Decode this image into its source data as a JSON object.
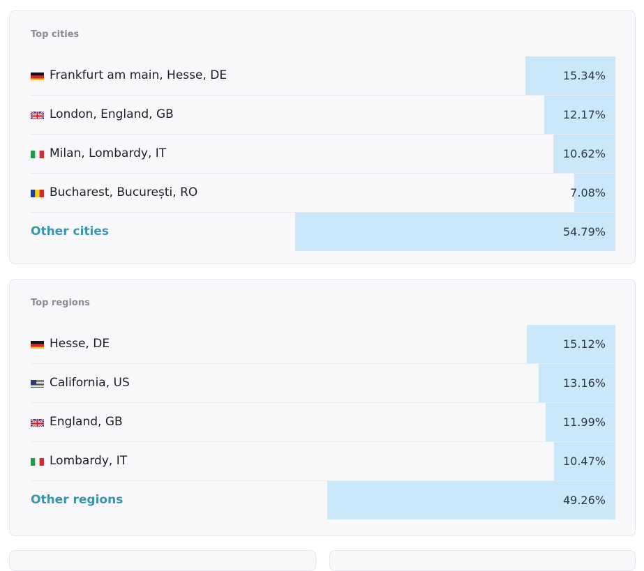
{
  "panels": [
    {
      "title": "Top cities",
      "rows": [
        {
          "label": "Frankfurt am main, Hesse, DE",
          "value": 15.34,
          "value_label": "15.34%"
        },
        {
          "label": "London, England, GB",
          "value": 12.17,
          "value_label": "12.17%"
        },
        {
          "label": "Milan, Lombardy, IT",
          "value": 10.62,
          "value_label": "10.62%"
        },
        {
          "label": "Bucharest, București, RO",
          "value": 7.08,
          "value_label": "7.08%"
        },
        {
          "label": "Other cities",
          "value": 54.79,
          "value_label": "54.79%"
        }
      ]
    },
    {
      "title": "Top regions",
      "rows": [
        {
          "label": "Hesse, DE",
          "value": 15.12,
          "value_label": "15.12%"
        },
        {
          "label": "California, US",
          "value": 13.16,
          "value_label": "13.16%"
        },
        {
          "label": "England, GB",
          "value": 11.99,
          "value_label": "11.99%"
        },
        {
          "label": "Lombardy, IT",
          "value": 10.47,
          "value_label": "10.47%"
        },
        {
          "label": "Other regions",
          "value": 49.26,
          "value_label": "49.26%"
        }
      ]
    }
  ]
}
